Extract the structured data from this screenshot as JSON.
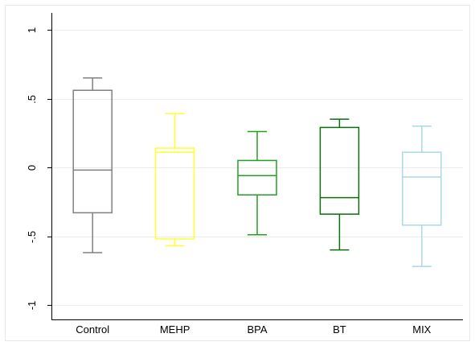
{
  "chart_data": {
    "type": "box",
    "title": "",
    "xlabel": "",
    "ylabel": "",
    "ylim": [
      -1.2,
      1.1
    ],
    "yticks": [
      -1,
      -0.5,
      0,
      0.5,
      1
    ],
    "ytick_labels": [
      "-1",
      "-.5",
      "0",
      ".5",
      "1"
    ],
    "grid": true,
    "categories": [
      "Control",
      "MEHP",
      "BPA",
      "BT",
      "MIX"
    ],
    "boxes": [
      {
        "category": "Control",
        "color": "#808080",
        "min": -0.62,
        "q1": -0.33,
        "median": -0.02,
        "q3": 0.56,
        "max": 0.65
      },
      {
        "category": "MEHP",
        "color": "#ffff33",
        "min": -0.57,
        "q1": -0.52,
        "median": 0.11,
        "q3": 0.14,
        "max": 0.39
      },
      {
        "category": "BPA",
        "color": "#22a022",
        "min": -0.49,
        "q1": -0.2,
        "median": -0.06,
        "q3": 0.05,
        "max": 0.26
      },
      {
        "category": "BT",
        "color": "#0a6e0a",
        "min": -0.6,
        "q1": -0.34,
        "median": -0.22,
        "q3": 0.29,
        "max": 0.35
      },
      {
        "category": "MIX",
        "color": "#a8d8e8",
        "min": -0.72,
        "q1": -0.42,
        "median": -0.07,
        "q3": 0.11,
        "max": 0.3
      }
    ]
  }
}
